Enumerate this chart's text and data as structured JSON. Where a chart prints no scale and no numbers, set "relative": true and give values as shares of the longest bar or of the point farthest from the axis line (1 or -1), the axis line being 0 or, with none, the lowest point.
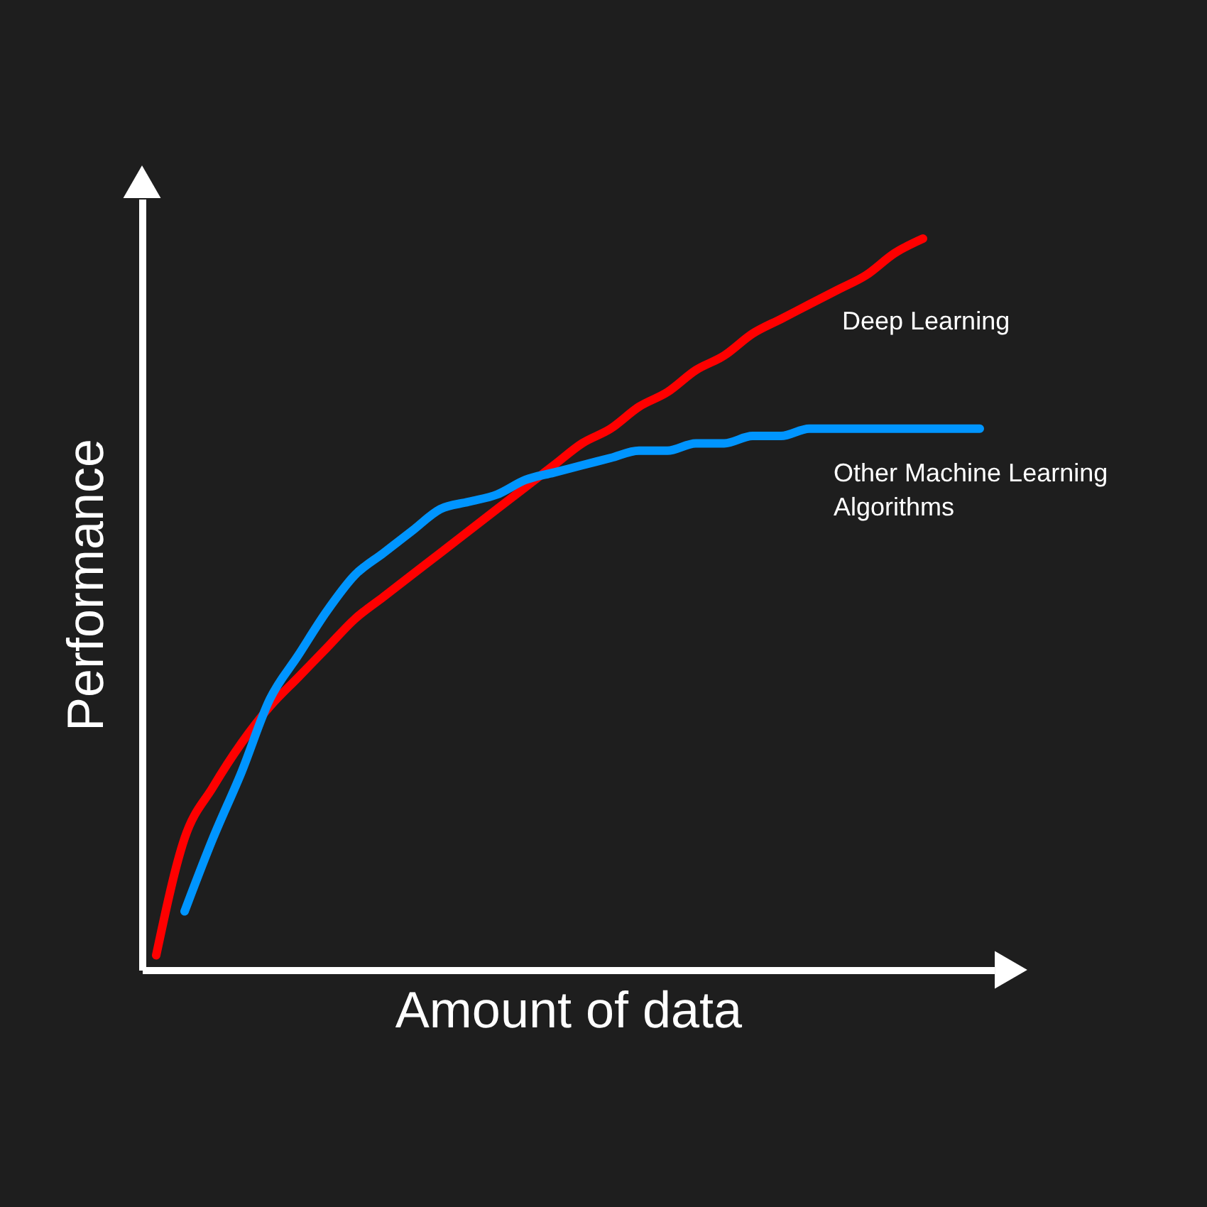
{
  "chart_data": {
    "type": "line",
    "relative": true,
    "xlabel": "Amount of data",
    "ylabel": "Performance",
    "grid": false,
    "categories": [
      null,
      null,
      null,
      null,
      null,
      null,
      null,
      null,
      null,
      null,
      null,
      null,
      null,
      null,
      null,
      null,
      null,
      null,
      null,
      null,
      null,
      null,
      null,
      null,
      null,
      null,
      null,
      null,
      null,
      null
    ],
    "series": [
      {
        "name": "Deep Learning",
        "color": "#ff0000",
        "values": [
          0.02,
          0.18,
          0.25,
          0.31,
          0.36,
          0.4,
          0.44,
          0.48,
          0.51,
          0.54,
          0.57,
          0.6,
          0.63,
          0.66,
          0.69,
          0.72,
          0.74,
          0.77,
          0.79,
          0.82,
          0.84,
          0.87,
          0.89,
          0.91,
          0.93,
          0.95,
          0.98,
          1.0,
          null,
          null
        ]
      },
      {
        "name": "Other Machine Learning Algorithms",
        "color": "#0095ff",
        "values": [
          null,
          0.08,
          0.18,
          0.27,
          0.37,
          0.43,
          0.49,
          0.54,
          0.57,
          0.6,
          0.63,
          0.64,
          0.65,
          0.67,
          0.68,
          0.69,
          0.7,
          0.71,
          0.71,
          0.72,
          0.72,
          0.73,
          0.73,
          0.74,
          0.74,
          0.74,
          0.74,
          0.74,
          0.74,
          0.74
        ]
      }
    ]
  }
}
